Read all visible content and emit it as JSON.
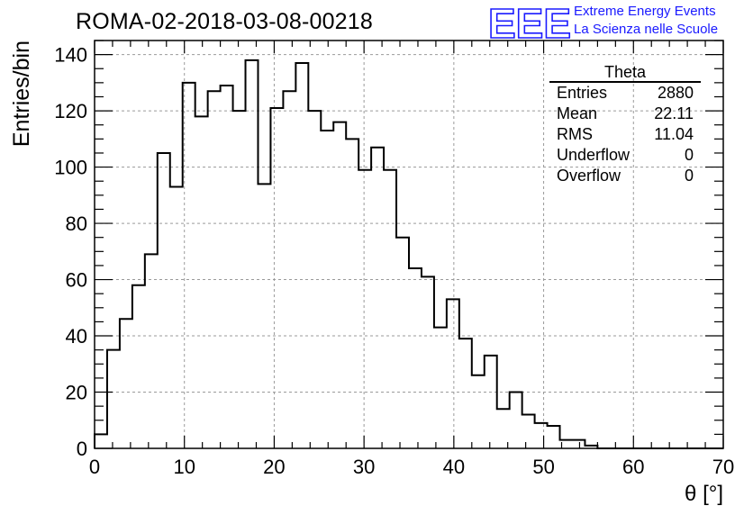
{
  "page_title": "ROMA-02-2018-03-08-00218",
  "logo": {
    "mark": "EEE",
    "line1": "Extreme Energy Events",
    "line2": "La Scienza nelle Scuole",
    "color": "#1a1aff"
  },
  "stats_box": {
    "title": "Theta",
    "rows": [
      {
        "label": "Entries",
        "value": "2880"
      },
      {
        "label": "Mean",
        "value": "22.11"
      },
      {
        "label": "RMS",
        "value": "11.04"
      },
      {
        "label": "Underflow",
        "value": "0"
      },
      {
        "label": "Overflow",
        "value": "0"
      }
    ]
  },
  "chart_data": {
    "type": "bar",
    "title": "ROMA-02-2018-03-08-00218",
    "xlabel": "θ [°]",
    "ylabel": "Entries/bin",
    "xlim": [
      0,
      70
    ],
    "ylim": [
      0,
      145
    ],
    "bin_width": 1.4,
    "x_ticks": [
      0,
      10,
      20,
      30,
      40,
      50,
      60,
      70
    ],
    "y_ticks": [
      0,
      20,
      40,
      60,
      80,
      100,
      120,
      140
    ],
    "grid": true,
    "line_color": "#000000",
    "values": [
      5,
      35,
      46,
      58,
      69,
      105,
      93,
      130,
      118,
      127,
      129,
      120,
      138,
      94,
      121,
      127,
      137,
      120,
      113,
      116,
      110,
      99,
      107,
      99,
      75,
      64,
      61,
      43,
      53,
      39,
      26,
      33,
      14,
      20,
      12,
      9,
      8,
      3,
      3,
      1,
      0,
      0,
      0,
      0,
      0,
      0,
      0,
      0,
      0,
      0
    ]
  }
}
